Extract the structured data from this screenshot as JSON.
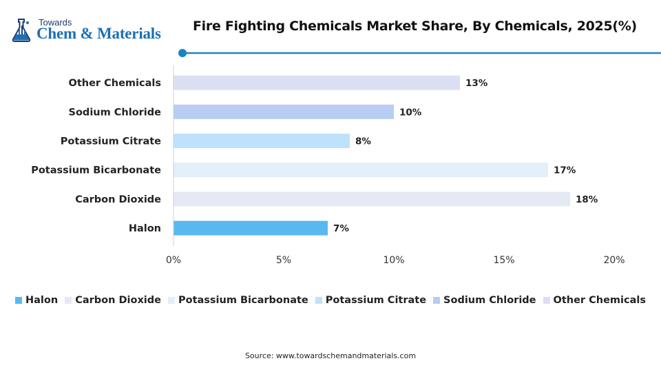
{
  "brand": {
    "small": "Towards",
    "big": "Chem & Materials"
  },
  "source": "Source: www.towardschemandmaterials.com",
  "colors": {
    "accent": "#1a84c4",
    "title_text": "#111111"
  },
  "chart_data": {
    "type": "bar",
    "orientation": "horizontal",
    "title": "Fire Fighting Chemicals Market Share, By Chemicals, 2025(%)",
    "xlabel": "",
    "ylabel": "",
    "categories": [
      "Halon",
      "Carbon Dioxide",
      "Potassium Bicarbonate",
      "Potassium Citrate",
      "Sodium Chloride",
      "Other Chemicals"
    ],
    "values": [
      7,
      18,
      17,
      8,
      10,
      13
    ],
    "data_labels": [
      "7%",
      "18%",
      "17%",
      "8%",
      "10%",
      "13%"
    ],
    "colors": [
      "#5ab8f0",
      "#e4e9f3",
      "#e3eff9",
      "#bee2fb",
      "#b7cdf4",
      "#dcdff4"
    ],
    "xlim": [
      0,
      20
    ],
    "x_ticks": [
      "0%",
      "5%",
      "10%",
      "15%",
      "20%"
    ],
    "grid": false,
    "legend_position": "bottom"
  }
}
